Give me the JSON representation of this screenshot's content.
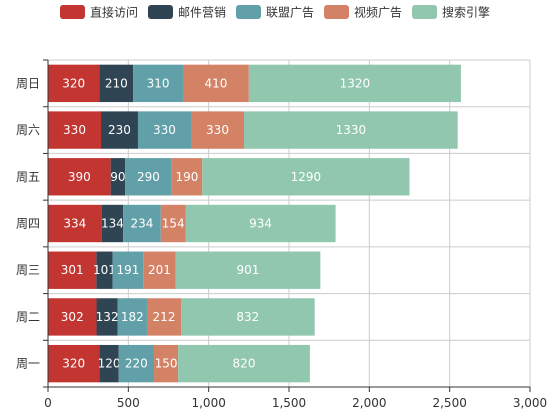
{
  "chart_data": {
    "type": "bar",
    "orientation": "horizontal",
    "stacked": true,
    "categories": [
      "周一",
      "周二",
      "周三",
      "周四",
      "周五",
      "周六",
      "周日"
    ],
    "series": [
      {
        "name": "直接访问",
        "color": "#c23531",
        "values": [
          320,
          302,
          301,
          334,
          390,
          330,
          320
        ]
      },
      {
        "name": "邮件营销",
        "color": "#2f4554",
        "values": [
          120,
          132,
          101,
          134,
          90,
          230,
          210
        ]
      },
      {
        "name": "联盟广告",
        "color": "#61a0a8",
        "values": [
          220,
          182,
          191,
          234,
          290,
          330,
          310
        ]
      },
      {
        "name": "视频广告",
        "color": "#d48265",
        "values": [
          150,
          212,
          201,
          154,
          190,
          330,
          410
        ]
      },
      {
        "name": "搜索引擎",
        "color": "#91c7ae",
        "values": [
          820,
          832,
          901,
          934,
          1290,
          1330,
          1320
        ]
      }
    ],
    "xlim": [
      0,
      3000
    ],
    "xticks": [
      0,
      500,
      1000,
      1500,
      2000,
      2500,
      3000
    ],
    "xtick_labels": [
      "0",
      "500",
      "1,000",
      "1,500",
      "2,000",
      "2,500",
      "3,000"
    ],
    "grid": true,
    "legend_position": "top",
    "data_labels": true
  }
}
